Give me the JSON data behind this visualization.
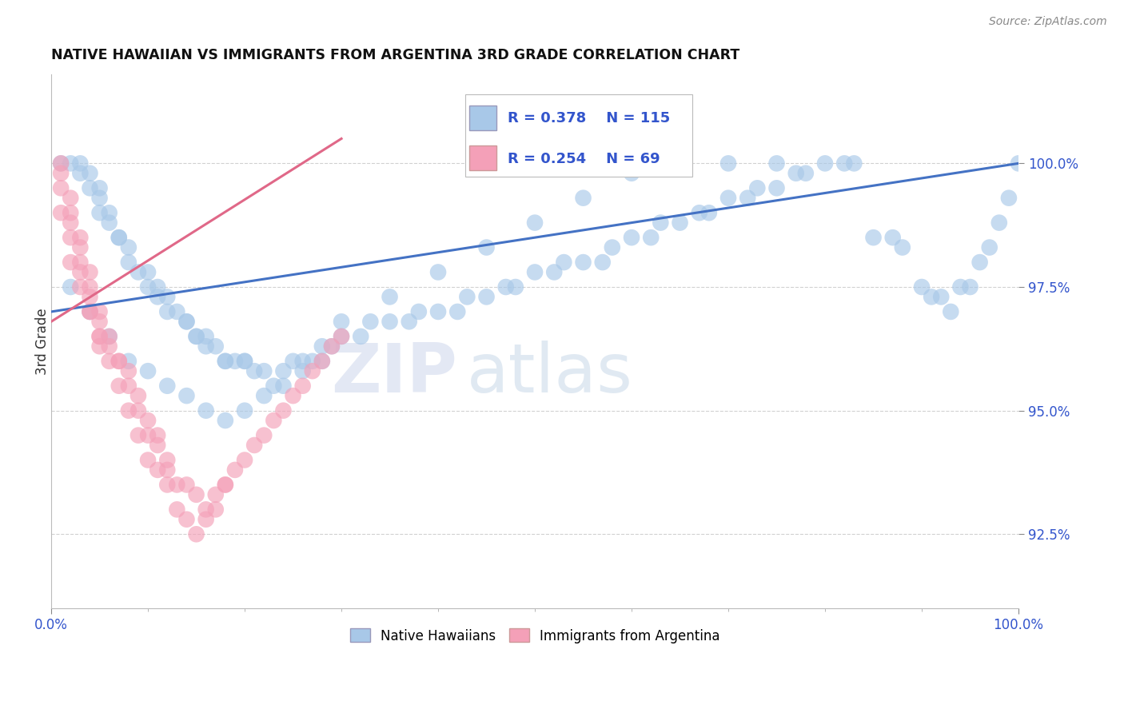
{
  "title": "NATIVE HAWAIIAN VS IMMIGRANTS FROM ARGENTINA 3RD GRADE CORRELATION CHART",
  "source": "Source: ZipAtlas.com",
  "ylabel": "3rd Grade",
  "xmin": 0.0,
  "xmax": 100.0,
  "ymin": 91.0,
  "ymax": 101.8,
  "yticks": [
    92.5,
    95.0,
    97.5,
    100.0
  ],
  "ytick_labels": [
    "92.5%",
    "95.0%",
    "97.5%",
    "100.0%"
  ],
  "xtick_labels": [
    "0.0%",
    "100.0%"
  ],
  "blue_R": 0.378,
  "blue_N": 115,
  "pink_R": 0.254,
  "pink_N": 69,
  "blue_color": "#a8c8e8",
  "pink_color": "#f4a0b8",
  "blue_line_color": "#4472c4",
  "pink_line_color": "#e06888",
  "legend_blue_label": "Native Hawaiians",
  "legend_pink_label": "Immigrants from Argentina",
  "watermark_zip": "ZIP",
  "watermark_atlas": "atlas",
  "blue_line_x": [
    0.0,
    100.0
  ],
  "blue_line_y": [
    97.0,
    100.0
  ],
  "pink_line_x": [
    0.0,
    30.0
  ],
  "pink_line_y": [
    96.8,
    100.5
  ],
  "blue_x": [
    1,
    2,
    3,
    3,
    4,
    4,
    5,
    5,
    5,
    6,
    6,
    7,
    7,
    8,
    8,
    9,
    10,
    10,
    11,
    11,
    12,
    12,
    13,
    14,
    14,
    15,
    15,
    16,
    16,
    17,
    18,
    18,
    19,
    20,
    20,
    21,
    22,
    23,
    24,
    25,
    26,
    27,
    28,
    29,
    30,
    32,
    33,
    35,
    37,
    38,
    40,
    42,
    43,
    45,
    47,
    48,
    50,
    52,
    53,
    55,
    57,
    58,
    60,
    62,
    63,
    65,
    67,
    68,
    70,
    72,
    73,
    75,
    77,
    78,
    80,
    82,
    83,
    85,
    87,
    88,
    90,
    91,
    92,
    93,
    94,
    95,
    96,
    97,
    98,
    99,
    100,
    2,
    4,
    6,
    8,
    10,
    12,
    14,
    16,
    18,
    20,
    22,
    24,
    26,
    28,
    30,
    35,
    40,
    45,
    50,
    55,
    60,
    65,
    70,
    75
  ],
  "blue_y": [
    100.0,
    100.0,
    100.0,
    99.8,
    99.8,
    99.5,
    99.5,
    99.3,
    99.0,
    99.0,
    98.8,
    98.5,
    98.5,
    98.3,
    98.0,
    97.8,
    97.5,
    97.8,
    97.5,
    97.3,
    97.3,
    97.0,
    97.0,
    96.8,
    96.8,
    96.5,
    96.5,
    96.5,
    96.3,
    96.3,
    96.0,
    96.0,
    96.0,
    96.0,
    96.0,
    95.8,
    95.8,
    95.5,
    95.8,
    96.0,
    96.0,
    96.0,
    96.3,
    96.3,
    96.5,
    96.5,
    96.8,
    96.8,
    96.8,
    97.0,
    97.0,
    97.0,
    97.3,
    97.3,
    97.5,
    97.5,
    97.8,
    97.8,
    98.0,
    98.0,
    98.0,
    98.3,
    98.5,
    98.5,
    98.8,
    98.8,
    99.0,
    99.0,
    99.3,
    99.3,
    99.5,
    99.5,
    99.8,
    99.8,
    100.0,
    100.0,
    100.0,
    98.5,
    98.5,
    98.3,
    97.5,
    97.3,
    97.3,
    97.0,
    97.5,
    97.5,
    98.0,
    98.3,
    98.8,
    99.3,
    100.0,
    97.5,
    97.0,
    96.5,
    96.0,
    95.8,
    95.5,
    95.3,
    95.0,
    94.8,
    95.0,
    95.3,
    95.5,
    95.8,
    96.0,
    96.8,
    97.3,
    97.8,
    98.3,
    98.8,
    99.3,
    99.8,
    100.0,
    100.0,
    100.0
  ],
  "pink_x": [
    1,
    1,
    1,
    2,
    2,
    2,
    3,
    3,
    3,
    4,
    4,
    4,
    5,
    5,
    5,
    6,
    6,
    7,
    7,
    8,
    8,
    9,
    9,
    10,
    10,
    11,
    11,
    12,
    12,
    13,
    14,
    15,
    16,
    17,
    18,
    19,
    20,
    21,
    22,
    23,
    24,
    25,
    26,
    27,
    28,
    29,
    30,
    2,
    3,
    4,
    5,
    6,
    7,
    8,
    9,
    10,
    11,
    12,
    13,
    14,
    15,
    16,
    17,
    18,
    1,
    2,
    3,
    4,
    5
  ],
  "pink_y": [
    100.0,
    99.8,
    99.5,
    99.3,
    99.0,
    98.8,
    98.5,
    98.3,
    98.0,
    97.8,
    97.5,
    97.3,
    97.0,
    96.8,
    96.5,
    96.5,
    96.3,
    96.0,
    96.0,
    95.8,
    95.5,
    95.3,
    95.0,
    94.8,
    94.5,
    94.5,
    94.3,
    94.0,
    93.8,
    93.5,
    93.5,
    93.3,
    93.0,
    93.3,
    93.5,
    93.8,
    94.0,
    94.3,
    94.5,
    94.8,
    95.0,
    95.3,
    95.5,
    95.8,
    96.0,
    96.3,
    96.5,
    98.0,
    97.5,
    97.0,
    96.5,
    96.0,
    95.5,
    95.0,
    94.5,
    94.0,
    93.8,
    93.5,
    93.0,
    92.8,
    92.5,
    92.8,
    93.0,
    93.5,
    99.0,
    98.5,
    97.8,
    97.0,
    96.3
  ]
}
